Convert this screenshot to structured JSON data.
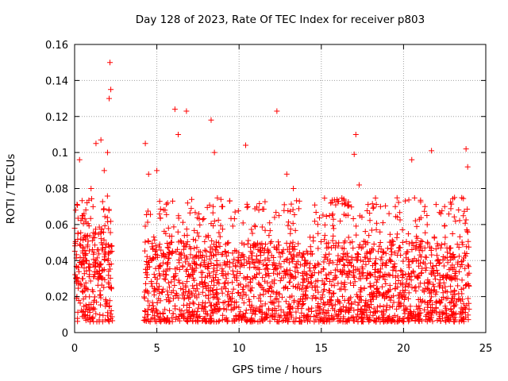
{
  "chart_data": {
    "type": "scatter",
    "title": "Day 128 of 2023, Rate Of TEC Index for receiver p803",
    "xlabel": "GPS time / hours",
    "ylabel": "ROTI / TECUs",
    "xlim": [
      0,
      25
    ],
    "ylim": [
      0,
      0.16
    ],
    "xticks": [
      0,
      5,
      10,
      15,
      20,
      25
    ],
    "xtick_labels": [
      "0",
      "5",
      "10",
      "15",
      "20",
      "25"
    ],
    "yticks": [
      0,
      0.02,
      0.04,
      0.06,
      0.08,
      0.1,
      0.12,
      0.14,
      0.16
    ],
    "ytick_labels": [
      "0",
      "0.02",
      "0.04",
      "0.06",
      "0.08",
      "0.1",
      "0.12",
      "0.14",
      "0.16"
    ],
    "grid": true,
    "marker": "+",
    "color": "#ff0000",
    "data_gap_hours": [
      2.3,
      4.2
    ],
    "series": [
      {
        "x": [
          0.1,
          0.2,
          0.3,
          0.5,
          0.7,
          1.0,
          1.3,
          1.6,
          1.8,
          2.0,
          2.1,
          2.15,
          2.2,
          4.3,
          4.5,
          5.0,
          5.5,
          6.1,
          6.3,
          6.8,
          8.3,
          8.5,
          9.0,
          10.4,
          11.2,
          12.3,
          12.9,
          13.3,
          14.8,
          15.5,
          16.5,
          17.0,
          17.1,
          17.3,
          18.6,
          19.5,
          20.5,
          21.3,
          21.7,
          22.5,
          23.1,
          23.8,
          23.9
        ],
        "y": [
          0.03,
          0.055,
          0.096,
          0.065,
          0.04,
          0.08,
          0.105,
          0.107,
          0.09,
          0.1,
          0.13,
          0.15,
          0.135,
          0.105,
          0.088,
          0.09,
          0.068,
          0.124,
          0.11,
          0.123,
          0.118,
          0.1,
          0.07,
          0.104,
          0.068,
          0.123,
          0.088,
          0.08,
          0.055,
          0.065,
          0.065,
          0.099,
          0.11,
          0.082,
          0.07,
          0.07,
          0.096,
          0.07,
          0.101,
          0.07,
          0.075,
          0.102,
          0.092
        ]
      }
    ]
  }
}
